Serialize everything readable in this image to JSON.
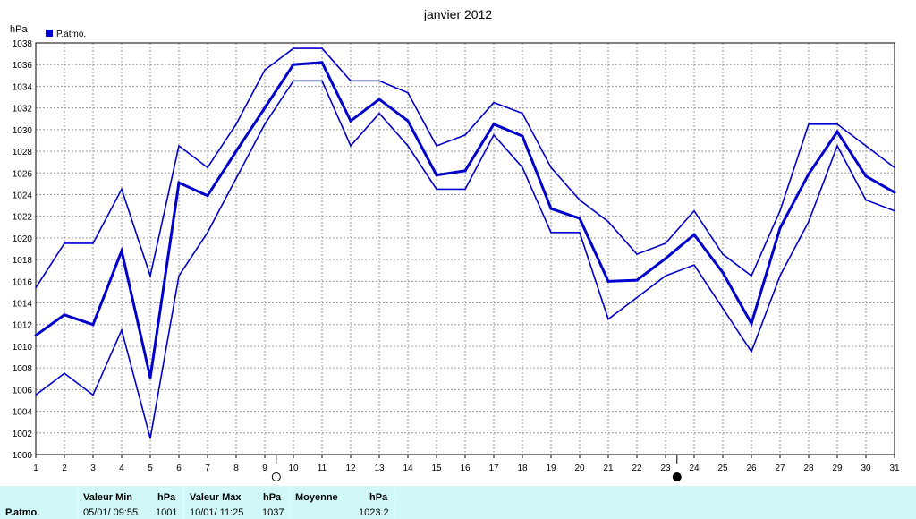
{
  "chart_data": {
    "type": "line",
    "title": "janvier 2012",
    "ylabel": "hPa",
    "legend": {
      "label": "P.atmo.",
      "color": "#0000cc",
      "placement": "top-left"
    },
    "x": [
      1,
      2,
      3,
      4,
      5,
      6,
      7,
      8,
      9,
      10,
      11,
      12,
      13,
      14,
      15,
      16,
      17,
      18,
      19,
      20,
      21,
      22,
      23,
      24,
      25,
      26,
      27,
      28,
      29,
      30,
      31
    ],
    "xlim": [
      1,
      31
    ],
    "ylim": [
      1000,
      1038
    ],
    "yticks": [
      1000,
      1002,
      1004,
      1006,
      1008,
      1010,
      1012,
      1014,
      1016,
      1018,
      1020,
      1022,
      1024,
      1026,
      1028,
      1030,
      1032,
      1034,
      1036,
      1038
    ],
    "grid": true,
    "series": [
      {
        "role": "max",
        "color": "#0000cc",
        "values": [
          1015.4,
          1019.5,
          1019.5,
          1024.5,
          1016.5,
          1028.5,
          1026.5,
          1030.5,
          1035.5,
          1037.5,
          1037.5,
          1034.5,
          1034.5,
          1033.4,
          1028.5,
          1029.5,
          1032.5,
          1031.5,
          1026.5,
          1023.5,
          1021.5,
          1018.5,
          1019.5,
          1022.5,
          1018.5,
          1016.5,
          1022.5,
          1030.5,
          1030.5,
          1028.5,
          1026.5
        ]
      },
      {
        "role": "mean",
        "color": "#0000cc",
        "values": [
          1011.0,
          1012.9,
          1012.0,
          1018.8,
          1007.1,
          1025.1,
          1023.9,
          1028.0,
          1032.0,
          1036.0,
          1036.2,
          1030.8,
          1032.8,
          1030.8,
          1025.8,
          1026.2,
          1030.5,
          1029.4,
          1022.7,
          1021.8,
          1016.0,
          1016.1,
          1018.1,
          1020.3,
          1016.8,
          1012.1,
          1020.9,
          1025.9,
          1029.8,
          1025.7,
          1024.2
        ]
      },
      {
        "role": "min",
        "color": "#0000cc",
        "values": [
          1005.5,
          1007.5,
          1005.5,
          1011.5,
          1001.5,
          1016.5,
          1020.5,
          1025.5,
          1030.5,
          1034.5,
          1034.5,
          1028.5,
          1031.5,
          1028.5,
          1024.5,
          1024.5,
          1029.5,
          1026.5,
          1020.5,
          1020.5,
          1012.5,
          1014.5,
          1016.5,
          1017.5,
          1013.5,
          1009.5,
          1016.5,
          1021.5,
          1028.5,
          1023.5,
          1022.5
        ]
      }
    ],
    "moon_phases": [
      {
        "day": 9.4,
        "phase": "full"
      },
      {
        "day": 23.4,
        "phase": "new"
      }
    ]
  },
  "stats": {
    "row_label": "P.atmo.",
    "min_header": "Valeur Min",
    "min_unit": "hPa",
    "min_date": "05/01/  09:55",
    "min_value": "1001",
    "max_header": "Valeur Max",
    "max_unit": "hPa",
    "max_date": "10/01/  11:25",
    "max_value": "1037",
    "avg_header": "Moyenne",
    "avg_unit": "hPa",
    "avg_value": "1023.2"
  }
}
